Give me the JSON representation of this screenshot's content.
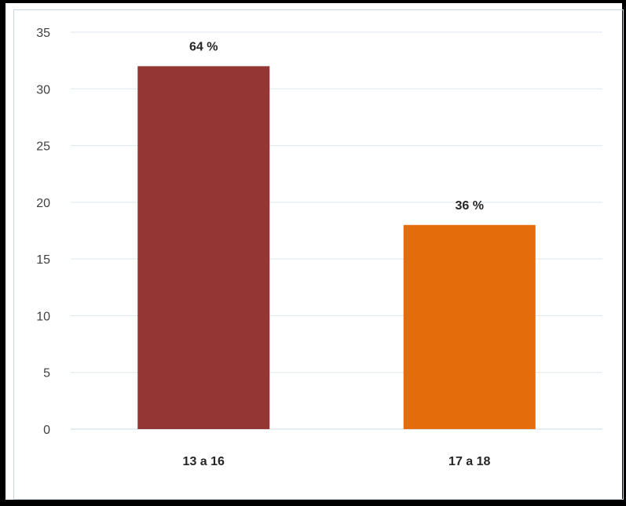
{
  "chart_data": {
    "type": "bar",
    "categories": [
      "13 a 16",
      "17 a 18"
    ],
    "values": [
      32,
      18
    ],
    "data_labels": [
      "64 %",
      "36 %"
    ],
    "colors": [
      "#943634",
      "#E46C0A"
    ],
    "ylim": [
      0,
      35
    ],
    "yticks": [
      0,
      5,
      10,
      15,
      20,
      25,
      30,
      35
    ],
    "grid": true,
    "gridline_color": "#dce6f0"
  }
}
